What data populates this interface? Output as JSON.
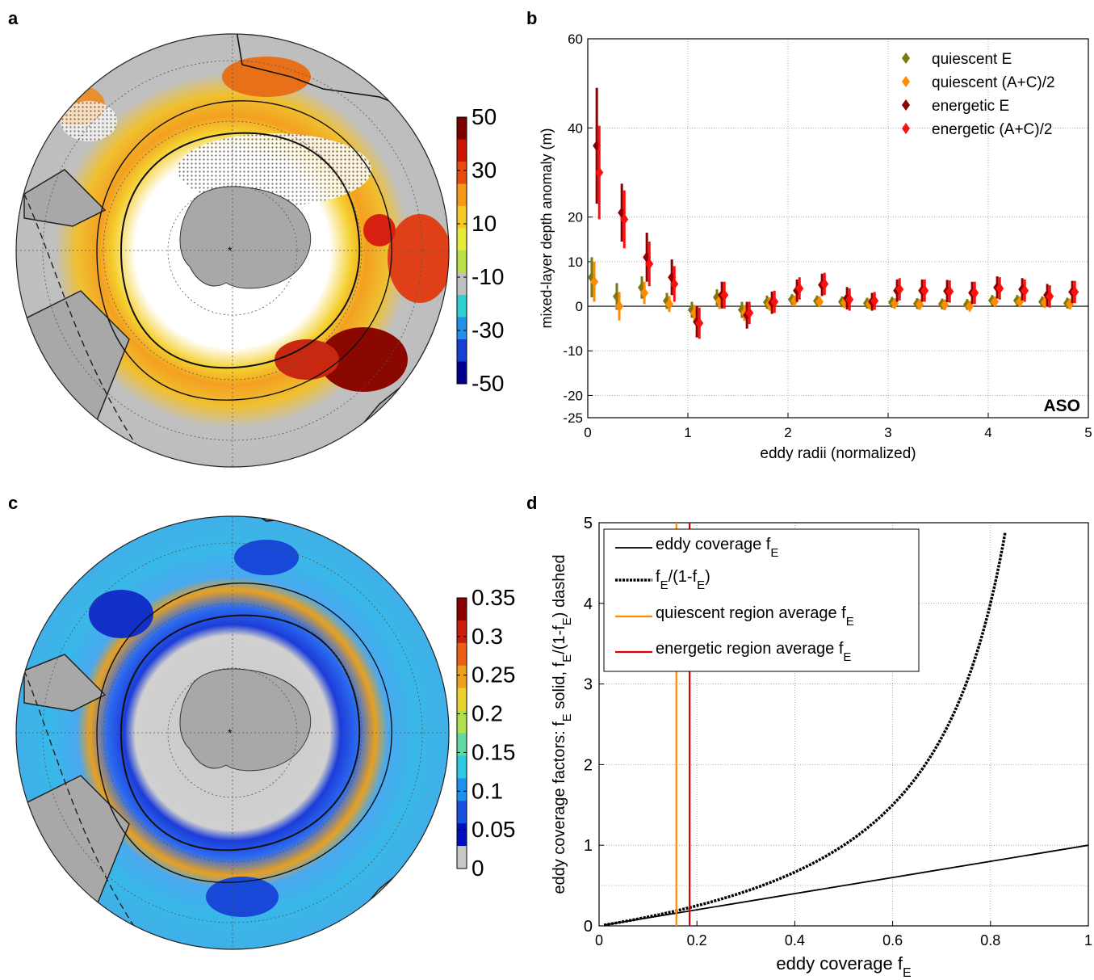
{
  "panels": {
    "a": "a",
    "b": "b",
    "c": "c",
    "d": "d"
  },
  "colorbar_a": {
    "ticks": [
      "50",
      "30",
      "10",
      "-10",
      "-30",
      "-50"
    ],
    "colors": [
      "#7a0000",
      "#c81400",
      "#e84a10",
      "#f39a1a",
      "#f5c82a",
      "#e6ea3c",
      "#b8e04a",
      "#c0c0c0",
      "#30d0d0",
      "#2090e8",
      "#1840d0",
      "#00008c"
    ]
  },
  "colorbar_c": {
    "ticks": [
      "0.35",
      "0.3",
      "0.25",
      "0.2",
      "0.15",
      "0.1",
      "0.05",
      "0"
    ],
    "colors": [
      "#8a0000",
      "#c81e10",
      "#e8601a",
      "#f0a020",
      "#e8d230",
      "#b0e050",
      "#60d8a0",
      "#30c8e0",
      "#2090f0",
      "#1850e0",
      "#0010c0",
      "#c8c8c8"
    ]
  },
  "chart_data": [
    {
      "panel": "b",
      "type": "scatter",
      "xlabel": "eddy radii (normalized)",
      "ylabel": "mixed-layer depth anomaly (m)",
      "xlim": [
        0,
        5
      ],
      "ylim": [
        -25,
        60
      ],
      "xticks": [
        "0",
        "1",
        "2",
        "3",
        "4",
        "5"
      ],
      "yticks": [
        "-25",
        "-20",
        "-10",
        "0",
        "10",
        "20",
        "40",
        "60"
      ],
      "ytick_values": [
        -25,
        -20,
        -10,
        0,
        10,
        20,
        40,
        60
      ],
      "annotation": "ASO",
      "grid": true,
      "legend_position": "top-right",
      "x": [
        0.125,
        0.375,
        0.625,
        0.875,
        1.125,
        1.375,
        1.625,
        1.875,
        2.125,
        2.375,
        2.625,
        2.875,
        3.125,
        3.375,
        3.625,
        3.875,
        4.125,
        4.375,
        4.625,
        4.875
      ],
      "series": [
        {
          "name": "quiescent E",
          "color": "#7a7a10",
          "offset": -0.025,
          "values": [
            6.5,
            2.2,
            4.2,
            1.2,
            -0.8,
            2.0,
            -0.8,
            0.9,
            1.5,
            1.2,
            1.0,
            0.7,
            0.9,
            0.6,
            0.5,
            0.4,
            1.3,
            1.3,
            1.0,
            0.7
          ],
          "err": [
            4.5,
            3.0,
            2.5,
            1.8,
            1.8,
            1.8,
            1.8,
            1.5,
            1.2,
            1.2,
            1.2,
            1.2,
            1.2,
            1.2,
            1.2,
            1.2,
            1.2,
            1.2,
            1.2,
            1.2
          ]
        },
        {
          "name": "quiescent (A+C)/2",
          "color": "#ff8c00",
          "offset": 0.0,
          "values": [
            5.5,
            0.0,
            3.0,
            0.5,
            -1.5,
            1.2,
            -1.5,
            0.5,
            1.2,
            1.0,
            0.8,
            0.5,
            0.6,
            0.4,
            0.3,
            0.0,
            1.0,
            1.0,
            0.8,
            0.5
          ],
          "err": [
            4.5,
            3.2,
            2.5,
            1.8,
            1.8,
            1.8,
            1.8,
            1.5,
            1.2,
            1.2,
            1.2,
            1.2,
            1.2,
            1.2,
            1.2,
            1.2,
            1.2,
            1.2,
            1.2,
            1.2
          ]
        },
        {
          "name": "energetic E",
          "color": "#8b0000",
          "offset": 0.025,
          "values": [
            36,
            21,
            11,
            6.5,
            -3.5,
            2.5,
            -2.0,
            0.8,
            3.5,
            4.8,
            1.8,
            1.0,
            3.5,
            3.5,
            3.4,
            3.0,
            4.2,
            3.8,
            2.5,
            3.2
          ],
          "err": [
            13,
            6.5,
            5.5,
            4.0,
            3.5,
            3.0,
            3.0,
            2.5,
            2.5,
            2.5,
            2.5,
            2.0,
            2.5,
            2.5,
            2.5,
            2.5,
            2.5,
            2.5,
            2.5,
            2.5
          ]
        },
        {
          "name": "energetic (A+C)/2",
          "color": "#ff1010",
          "offset": 0.05,
          "values": [
            30,
            19.5,
            9.5,
            5.0,
            -3.8,
            2.5,
            -1.5,
            1.0,
            4.0,
            5.0,
            1.5,
            1.2,
            3.8,
            3.5,
            3.3,
            3.0,
            4.0,
            3.5,
            2.2,
            3.2
          ],
          "err": [
            10.5,
            6.5,
            5.0,
            4.0,
            3.5,
            3.0,
            2.5,
            2.5,
            2.5,
            2.5,
            2.5,
            2.0,
            2.5,
            2.5,
            2.5,
            2.5,
            2.5,
            2.5,
            2.5,
            2.5
          ]
        }
      ]
    },
    {
      "panel": "d",
      "type": "line",
      "xlabel": "eddy coverage f",
      "xlabel_sub": "E",
      "ylabel": "eddy coverage factors: f",
      "ylabel_rest": [
        " solid, f",
        "/(1-f",
        ") dashed"
      ],
      "ylabel_sub": "E",
      "xlim": [
        0,
        1
      ],
      "ylim": [
        0,
        5
      ],
      "xticks": [
        "0",
        "0.2",
        "0.4",
        "0.6",
        "0.8",
        "1"
      ],
      "yticks": [
        "0",
        "1",
        "2",
        "3",
        "4",
        "5"
      ],
      "grid": true,
      "legend_position": "top-left",
      "series": [
        {
          "name": "eddy coverage f",
          "name_sub": "E",
          "style": "solid",
          "color": "#000000",
          "formula": "f"
        },
        {
          "name": "f",
          "name_sub": "E",
          "name_rest": "/(1-f",
          "name_rest_sub": "E",
          "name_end": ")",
          "style": "dashed",
          "color": "#000000",
          "formula": "f/(1-f)"
        },
        {
          "name": "quiescent region average f",
          "name_sub": "E",
          "style": "vertical",
          "color": "#ff8c00",
          "x": 0.158
        },
        {
          "name": "energetic region average f",
          "name_sub": "E",
          "style": "vertical",
          "color": "#e00000",
          "x": 0.185
        }
      ]
    }
  ]
}
